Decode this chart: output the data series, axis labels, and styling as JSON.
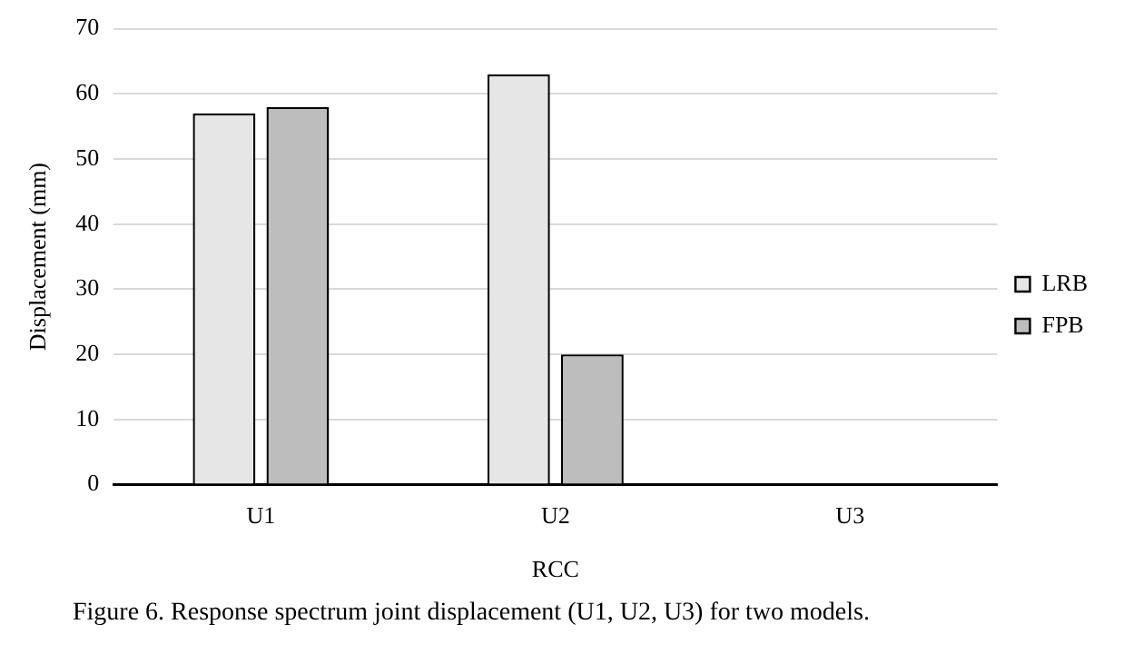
{
  "chart_data": {
    "type": "bar",
    "xlabel": "RCC",
    "ylabel": "Displacement (mm)",
    "categories": [
      "U1",
      "U2",
      "U3"
    ],
    "series": [
      {
        "name": "LRB",
        "color": "#e6e6e6",
        "values": [
          57,
          63,
          0
        ]
      },
      {
        "name": "FPB",
        "color": "#bdbdbd",
        "values": [
          58,
          20,
          0
        ]
      }
    ],
    "ylim": [
      0,
      70
    ],
    "yticks": [
      0,
      10,
      20,
      30,
      40,
      50,
      60,
      70
    ],
    "grid": "y",
    "legend": "right",
    "annotations": [
      "Figure 6. Response spectrum joint displacement (U1, U2, U3) for two models."
    ]
  }
}
